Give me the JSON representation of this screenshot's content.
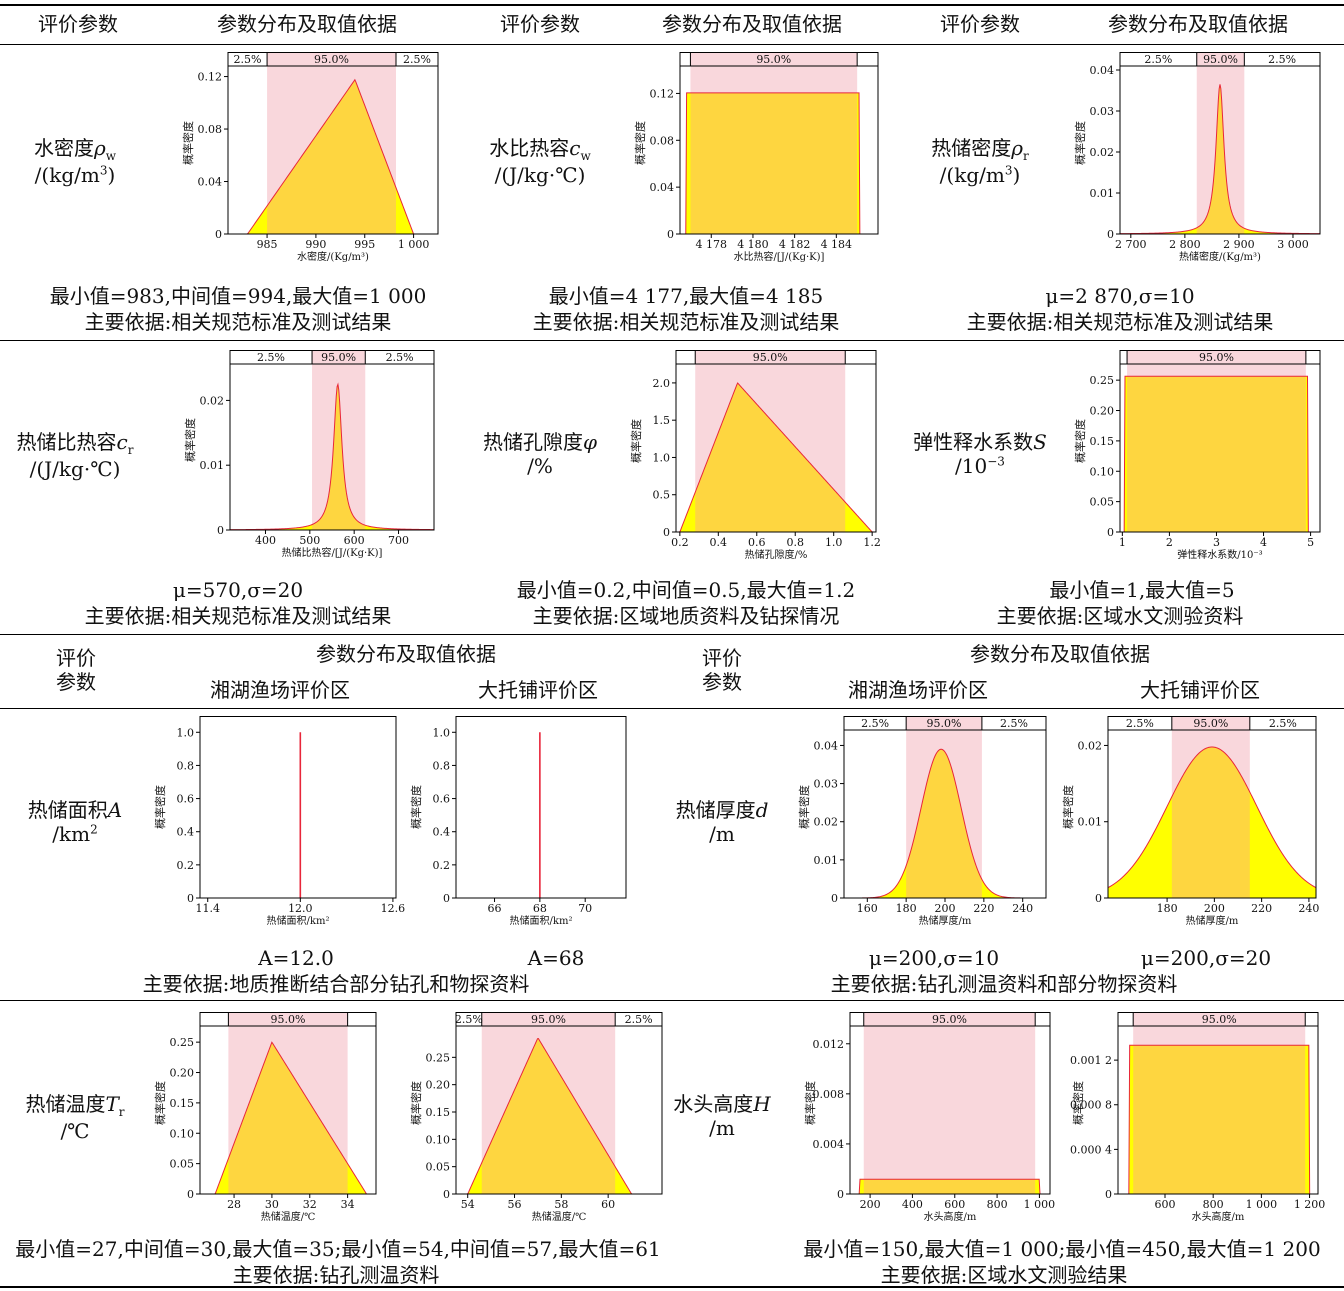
{
  "header_top": {
    "param": "评价参数",
    "dist": "参数分布及取值依据"
  },
  "header_bottom": {
    "param_line1": "评价",
    "param_line2": "参数",
    "dist": "参数分布及取值依据",
    "region1": "湘湖渔场评价区",
    "region2": "大托铺评价区"
  },
  "ylabel": "概率密度",
  "params": {
    "water_density": {
      "name": "水密度",
      "sym": "ρ",
      "sub": "w",
      "unit": "/(kg/m",
      "unit_sup": "3",
      "unit_end": ")",
      "stats": "最小值=983,中间值=994,最大值=1 000",
      "basis": "主要依据:相关规范标准及测试结果"
    },
    "water_heat": {
      "name": "水比热容",
      "sym": "c",
      "sub": "w",
      "unit": "/(J/kg·℃)",
      "stats": "最小值=4 177,最大值=4 185",
      "basis": "主要依据:相关规范标准及测试结果"
    },
    "reservoir_density": {
      "name": "热储密度",
      "sym": "ρ",
      "sub": "r",
      "unit": "/(kg/m",
      "unit_sup": "3",
      "unit_end": ")",
      "stats": "μ=2 870,σ=10",
      "basis": "主要依据:相关规范标准及测试结果"
    },
    "reservoir_heat": {
      "name": "热储比热容",
      "sym": "c",
      "sub": "r",
      "unit": "/(J/kg·℃)",
      "stats": "μ=570,σ=20",
      "basis": "主要依据:相关规范标准及测试结果"
    },
    "porosity": {
      "name": "热储孔隙度",
      "sym": "φ",
      "unit": "/%",
      "stats": "最小值=0.2,中间值=0.5,最大值=1.2",
      "basis": "主要依据:区域地质资料及钻探情况"
    },
    "storativity": {
      "name": "弹性释水系数",
      "sym": "S",
      "unit": "/10",
      "unit_sup": "−3",
      "stats": "最小值=1,最大值=5",
      "basis": "主要依据:区域水文测验资料"
    },
    "area": {
      "name": "热储面积",
      "sym": "A",
      "unit": "/km",
      "unit_sup": "2",
      "stats1": "A=12.0",
      "stats2": "A=68",
      "basis": "主要依据:地质推断结合部分钻孔和物探资料"
    },
    "thickness": {
      "name": "热储厚度",
      "sym": "d",
      "unit": "/m",
      "stats1": "μ=200,σ=10",
      "stats2": "μ=200,σ=20",
      "basis": "主要依据:钻孔测温资料和部分物探资料"
    },
    "temperature": {
      "name": "热储温度",
      "sym": "T",
      "sub": "r",
      "unit": "/℃",
      "stats": "最小值=27,中间值=30,最大值=35;最小值=54,中间值=57,最大值=61",
      "basis": "主要依据:钻孔测温资料"
    },
    "head": {
      "name": "水头高度",
      "sym": "H",
      "unit": "/m",
      "stats": "最小值=150,最大值=1 000;最小值=450,最大值=1 200",
      "basis": "主要依据:区域水文测验结果"
    }
  },
  "colors": {
    "fill": "#fed640",
    "tail": "#ffff00",
    "band": "#f9d7dc",
    "line": "#e8263a"
  },
  "chart_data": [
    {
      "id": "c1",
      "type": "area",
      "dist": "triangular",
      "min": 983,
      "mode": 994,
      "max": 1000,
      "xlabel": "水密度/(Kg/m³)",
      "xlim": [
        981,
        1002.5
      ],
      "ylim": [
        0,
        0.125
      ],
      "xticks": [
        985,
        990,
        995,
        1000
      ],
      "xtick_labels": [
        "985",
        "990",
        "995",
        "1 000"
      ],
      "yticks": [
        0,
        0.04,
        0.08,
        0.12
      ],
      "ytick_labels": [
        "0",
        "0.04",
        "0.08",
        "0.12"
      ],
      "band": [
        985,
        998.2
      ],
      "band_labels": [
        "2.5%",
        "95.0%",
        "2.5%"
      ]
    },
    {
      "id": "c2",
      "type": "area",
      "dist": "uniform",
      "min": 4176.8,
      "max": 4185.1,
      "xlabel": "水比热容/[J/(Kg·K)]",
      "xlim": [
        4176.5,
        4186
      ],
      "ylim": [
        0,
        0.14
      ],
      "xticks": [
        4178,
        4180,
        4182,
        4184
      ],
      "xtick_labels": [
        "4 178",
        "4 180",
        "4 182",
        "4 184"
      ],
      "yticks": [
        0,
        0.04,
        0.08,
        0.12
      ],
      "ytick_labels": [
        "0",
        "0.04",
        "0.08",
        "0.12"
      ],
      "band": [
        4177,
        4185
      ],
      "band_labels": [
        "",
        "95.0%",
        ""
      ]
    },
    {
      "id": "c3",
      "type": "area",
      "dist": "peaked",
      "mu": 2865,
      "scale": 22,
      "peak": 0.0365,
      "xlabel": "热储密度/(Kg/m³)",
      "xlim": [
        2680,
        3050
      ],
      "ylim": [
        0,
        0.04
      ],
      "xticks": [
        2700,
        2800,
        2900,
        3000
      ],
      "xtick_labels": [
        "2 700",
        "2 800",
        "2 900",
        "3 000"
      ],
      "yticks": [
        0,
        0.01,
        0.02,
        0.03,
        0.04
      ],
      "ytick_labels": [
        "0",
        "0.01",
        "0.02",
        "0.03",
        "0.04"
      ],
      "band": [
        2822,
        2910
      ],
      "band_labels": [
        "2.5%",
        "95.0%",
        "2.5%"
      ]
    },
    {
      "id": "c4",
      "type": "area",
      "dist": "peaked",
      "mu": 563,
      "scale": 28,
      "peak": 0.0225,
      "xlabel": "热储比热容/[J/(Kg·K)]",
      "xlim": [
        320,
        780
      ],
      "ylim": [
        0,
        0.025
      ],
      "xticks": [
        400,
        500,
        600,
        700
      ],
      "xtick_labels": [
        "400",
        "500",
        "600",
        "700"
      ],
      "yticks": [
        0,
        0.01,
        0.02
      ],
      "ytick_labels": [
        "0",
        "0.01",
        "0.02"
      ],
      "band": [
        505,
        625
      ],
      "band_labels": [
        "2.5%",
        "95.0%",
        "2.5%"
      ]
    },
    {
      "id": "c5",
      "type": "area",
      "dist": "triangular",
      "min": 0.2,
      "mode": 0.5,
      "max": 1.2,
      "xlabel": "热储孔隙度/%",
      "xlim": [
        0.18,
        1.22
      ],
      "ylim": [
        0,
        2.2
      ],
      "xticks": [
        0.2,
        0.4,
        0.6,
        0.8,
        1.0,
        1.2
      ],
      "xtick_labels": [
        "0.2",
        "0.4",
        "0.6",
        "0.8",
        "1.0",
        "1.2"
      ],
      "yticks": [
        0,
        0.5,
        1.0,
        1.5,
        2.0
      ],
      "ytick_labels": [
        "0",
        "0.5",
        "1.0",
        "1.5",
        "2.0"
      ],
      "band": [
        0.28,
        1.06
      ],
      "band_labels": [
        "",
        "95.0%",
        ""
      ]
    },
    {
      "id": "c6",
      "type": "area",
      "dist": "uniform",
      "min": 1.05,
      "max": 4.95,
      "xlabel": "弹性释水系数/10⁻³",
      "xlim": [
        0.95,
        5.2
      ],
      "ylim": [
        0,
        0.27
      ],
      "xticks": [
        1,
        2,
        3,
        4,
        5
      ],
      "xtick_labels": [
        "1",
        "2",
        "3",
        "4",
        "5"
      ],
      "yticks": [
        0,
        0.05,
        0.1,
        0.15,
        0.2,
        0.25
      ],
      "ytick_labels": [
        "0",
        "0.05",
        "0.10",
        "0.15",
        "0.20",
        "0.25"
      ],
      "band": [
        1.1,
        4.9
      ],
      "band_labels": [
        "",
        "95.0%",
        ""
      ]
    },
    {
      "id": "c7",
      "type": "area",
      "dist": "spike",
      "value": 12.0,
      "xlabel": "热储面积/km²",
      "xlim": [
        11.35,
        12.62
      ],
      "ylim": [
        0,
        1.05
      ],
      "xticks": [
        11.4,
        12.0,
        12.6
      ],
      "xtick_labels": [
        "11.4",
        "12.0",
        "12.6"
      ],
      "yticks": [
        0,
        0.2,
        0.4,
        0.6,
        0.8,
        1.0
      ],
      "ytick_labels": [
        "0",
        "0.2",
        "0.4",
        "0.6",
        "0.8",
        "1.0"
      ]
    },
    {
      "id": "c8",
      "type": "area",
      "dist": "spike",
      "value": 68,
      "xlabel": "热储面积/km²",
      "xlim": [
        64.3,
        71.8
      ],
      "ylim": [
        0,
        1.05
      ],
      "xticks": [
        66,
        68,
        70
      ],
      "xtick_labels": [
        "66",
        "68",
        "70"
      ],
      "yticks": [
        0,
        0.2,
        0.4,
        0.6,
        0.8,
        1.0
      ],
      "ytick_labels": [
        "0",
        "0.2",
        "0.4",
        "0.6",
        "0.8",
        "1.0"
      ]
    },
    {
      "id": "c9",
      "type": "area",
      "dist": "normal",
      "mu": 198,
      "sigma": 10.3,
      "peak": 0.039,
      "xlabel": "热储厚度/m",
      "xlim": [
        148,
        252
      ],
      "ylim": [
        0,
        0.043
      ],
      "xticks": [
        160,
        180,
        200,
        220,
        240
      ],
      "xtick_labels": [
        "160",
        "180",
        "200",
        "220",
        "240"
      ],
      "yticks": [
        0,
        0.01,
        0.02,
        0.03,
        0.04
      ],
      "ytick_labels": [
        "0",
        "0.01",
        "0.02",
        "0.03",
        "0.04"
      ],
      "band": [
        180,
        219
      ],
      "band_labels": [
        "2.5%",
        "95.0%",
        "2.5%"
      ]
    },
    {
      "id": "c10",
      "type": "area",
      "dist": "normal",
      "mu": 199,
      "sigma": 19,
      "peak": 0.0198,
      "xlabel": "热储厚度/m",
      "xlim": [
        155,
        243
      ],
      "ylim": [
        0,
        0.0215
      ],
      "xticks": [
        180,
        200,
        220,
        240
      ],
      "xtick_labels": [
        "180",
        "200",
        "220",
        "240"
      ],
      "yticks": [
        0,
        0.01,
        0.02
      ],
      "ytick_labels": [
        "0",
        "0.01",
        "0.02"
      ],
      "band": [
        182,
        215
      ],
      "band_labels": [
        "2.5%",
        "95.0%",
        "2.5%"
      ]
    },
    {
      "id": "c11",
      "type": "area",
      "dist": "triangular",
      "min": 27,
      "mode": 30,
      "max": 35,
      "xlabel": "热储温度/℃",
      "xlim": [
        26.2,
        35.5
      ],
      "ylim": [
        0,
        0.27
      ],
      "xticks": [
        28,
        30,
        32,
        34
      ],
      "xtick_labels": [
        "28",
        "30",
        "32",
        "34"
      ],
      "yticks": [
        0,
        0.05,
        0.1,
        0.15,
        0.2,
        0.25
      ],
      "ytick_labels": [
        "0",
        "0.05",
        "0.10",
        "0.15",
        "0.20",
        "0.25"
      ],
      "band": [
        27.7,
        34.0
      ],
      "band_labels": [
        "",
        "95.0%",
        ""
      ]
    },
    {
      "id": "c12",
      "type": "area",
      "dist": "triangular",
      "min": 54,
      "mode": 57,
      "max": 61,
      "xlabel": "热储温度/℃",
      "xlim": [
        53.5,
        62.3
      ],
      "ylim": [
        0,
        0.3
      ],
      "xticks": [
        54,
        56,
        58,
        60
      ],
      "xtick_labels": [
        "54",
        "56",
        "58",
        "60"
      ],
      "yticks": [
        0,
        0.05,
        0.1,
        0.15,
        0.2,
        0.25
      ],
      "ytick_labels": [
        "0",
        "0.05",
        "0.10",
        "0.15",
        "0.20",
        "0.25"
      ],
      "band": [
        54.6,
        60.3
      ],
      "band_labels": [
        "2.5%",
        "95.0%",
        "2.5%"
      ]
    },
    {
      "id": "c13",
      "type": "area",
      "dist": "uniform",
      "min": 150,
      "max": 1000,
      "xlabel": "水头高度/m",
      "xlim": [
        105,
        1050
      ],
      "ylim": [
        0,
        0.0131
      ],
      "xticks": [
        200,
        400,
        600,
        800,
        1000
      ],
      "xtick_labels": [
        "200",
        "400",
        "600",
        "800",
        "1 000"
      ],
      "yticks": [
        0,
        0.004,
        0.008,
        0.012
      ],
      "ytick_labels": [
        "0",
        "0.004",
        "0.008",
        "0.012"
      ],
      "band": [
        170,
        980
      ],
      "band_labels": [
        "",
        "95.0%",
        ""
      ]
    },
    {
      "id": "c14",
      "type": "area",
      "dist": "uniform",
      "min": 450,
      "max": 1200,
      "xlabel": "水头高度/m",
      "xlim": [
        405,
        1235
      ],
      "ylim": [
        0,
        0.00147
      ],
      "xticks": [
        600,
        800,
        1000,
        1200
      ],
      "xtick_labels": [
        "600",
        "800",
        "1 000",
        "1 200"
      ],
      "yticks": [
        0,
        0.0004,
        0.0008,
        0.0012
      ],
      "ytick_labels": [
        "0",
        "0.000 4",
        "0.000 8",
        "0.001 2"
      ],
      "band": [
        468,
        1182
      ],
      "band_labels": [
        "",
        "95.0%",
        ""
      ]
    }
  ]
}
